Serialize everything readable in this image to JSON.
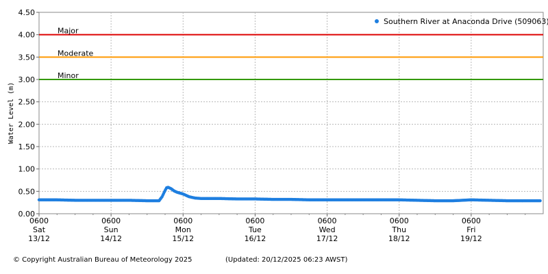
{
  "chart_data": {
    "type": "scatter",
    "ylabel": "Water Level (m)",
    "ylim": [
      0,
      4.5
    ],
    "yticks": [
      "0.00",
      "0.50",
      "1.00",
      "1.50",
      "2.00",
      "2.50",
      "3.00",
      "3.50",
      "4.00",
      "4.50"
    ],
    "x_start": "Sat 13/12 0600",
    "x_end": "Sat 20/12 0600",
    "xticks": [
      {
        "time": "0600",
        "day": "Sat",
        "date": "13/12",
        "hours": 0
      },
      {
        "time": "0600",
        "day": "Sun",
        "date": "14/12",
        "hours": 24
      },
      {
        "time": "0600",
        "day": "Mon",
        "date": "15/12",
        "hours": 48
      },
      {
        "time": "0600",
        "day": "Tue",
        "date": "16/12",
        "hours": 72
      },
      {
        "time": "0600",
        "day": "Wed",
        "date": "17/12",
        "hours": 96
      },
      {
        "time": "0600",
        "day": "Thu",
        "date": "18/12",
        "hours": 120
      },
      {
        "time": "0600",
        "day": "Fri",
        "date": "19/12",
        "hours": 144
      }
    ],
    "grid": true,
    "legend_position": "top-right",
    "thresholds": [
      {
        "name": "Major",
        "value": 4.0,
        "color": "#dd0000"
      },
      {
        "name": "Moderate",
        "value": 3.5,
        "color": "#ff9900"
      },
      {
        "name": "Minor",
        "value": 3.0,
        "color": "#339900"
      }
    ],
    "series": [
      {
        "name": "Southern River at Anaconda Drive (509063)",
        "color": "#1f7fe0",
        "points": [
          [
            0,
            0.31
          ],
          [
            6,
            0.31
          ],
          [
            12,
            0.3
          ],
          [
            18,
            0.3
          ],
          [
            24,
            0.3
          ],
          [
            30,
            0.3
          ],
          [
            36,
            0.29
          ],
          [
            40,
            0.29
          ],
          [
            41,
            0.38
          ],
          [
            42,
            0.52
          ],
          [
            42.5,
            0.58
          ],
          [
            43,
            0.59
          ],
          [
            44,
            0.56
          ],
          [
            45,
            0.51
          ],
          [
            46,
            0.48
          ],
          [
            48,
            0.44
          ],
          [
            50,
            0.38
          ],
          [
            52,
            0.35
          ],
          [
            54,
            0.34
          ],
          [
            60,
            0.34
          ],
          [
            66,
            0.33
          ],
          [
            72,
            0.33
          ],
          [
            78,
            0.32
          ],
          [
            84,
            0.32
          ],
          [
            90,
            0.31
          ],
          [
            96,
            0.31
          ],
          [
            102,
            0.31
          ],
          [
            108,
            0.31
          ],
          [
            114,
            0.31
          ],
          [
            120,
            0.31
          ],
          [
            126,
            0.3
          ],
          [
            132,
            0.29
          ],
          [
            138,
            0.29
          ],
          [
            144,
            0.31
          ],
          [
            150,
            0.3
          ],
          [
            156,
            0.29
          ],
          [
            162,
            0.29
          ],
          [
            167,
            0.29
          ]
        ]
      }
    ]
  },
  "footer": {
    "copyright": "© Copyright Australian Bureau of Meteorology 2025",
    "updated": "(Updated: 20/12/2025 06:23 AWST)"
  }
}
